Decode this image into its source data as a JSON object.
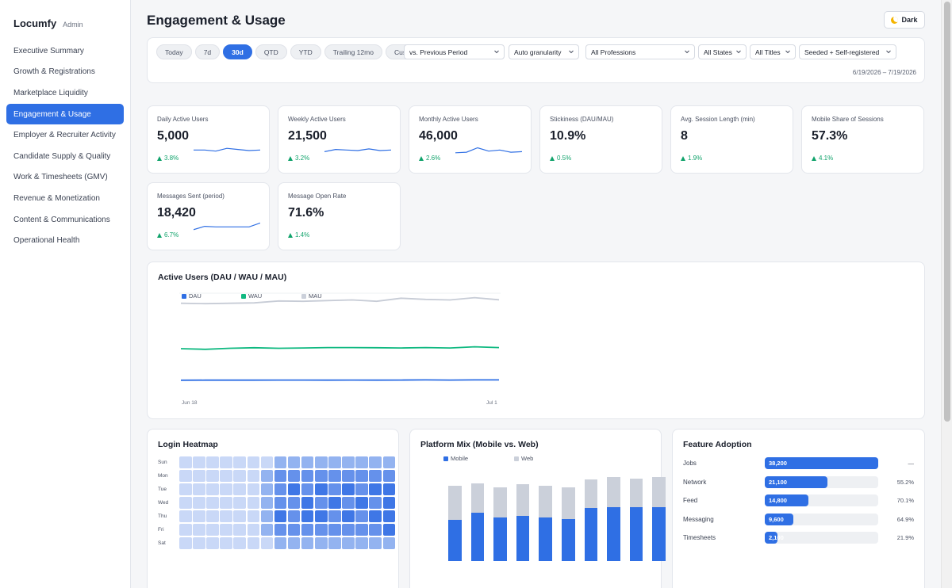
{
  "brand": {
    "name": "Locumfy",
    "sub": "Admin"
  },
  "nav": [
    {
      "label": "Executive Summary",
      "active": false
    },
    {
      "label": "Growth & Registrations",
      "active": false
    },
    {
      "label": "Marketplace Liquidity",
      "active": false
    },
    {
      "label": "Engagement & Usage",
      "active": true
    },
    {
      "label": "Employer & Recruiter Activity",
      "active": false
    },
    {
      "label": "Candidate Supply & Quality",
      "active": false
    },
    {
      "label": "Work & Timesheets (GMV)",
      "active": false
    },
    {
      "label": "Revenue & Monetization",
      "active": false
    },
    {
      "label": "Content & Communications",
      "active": false
    },
    {
      "label": "Operational Health",
      "active": false
    }
  ],
  "header": {
    "title": "Engagement & Usage",
    "theme_button": "Dark"
  },
  "filters": {
    "periods": [
      {
        "label": "Today",
        "active": false
      },
      {
        "label": "7d",
        "active": false
      },
      {
        "label": "30d",
        "active": true
      },
      {
        "label": "QTD",
        "active": false
      },
      {
        "label": "YTD",
        "active": false
      },
      {
        "label": "Trailing 12mo",
        "active": false
      },
      {
        "label": "Custom",
        "active": false
      }
    ],
    "comparison": "vs. Previous Period",
    "granularity": "Auto granularity",
    "profession": "All Professions",
    "state": "All States",
    "title": "All Titles",
    "source": "Seeded + Self-registered",
    "date_range": "6/19/2026 – 7/19/2026"
  },
  "kpis": [
    {
      "label": "Daily Active Users",
      "value": "5,000",
      "delta": "3.8%",
      "spark": [
        0.55,
        0.55,
        0.45,
        0.7,
        0.6,
        0.5,
        0.55
      ]
    },
    {
      "label": "Weekly Active Users",
      "value": "21,500",
      "delta": "3.2%",
      "spark": [
        0.4,
        0.6,
        0.55,
        0.5,
        0.65,
        0.5,
        0.55
      ]
    },
    {
      "label": "Monthly Active Users",
      "value": "46,000",
      "delta": "2.6%",
      "spark": [
        0.3,
        0.35,
        0.75,
        0.45,
        0.55,
        0.35,
        0.4
      ]
    },
    {
      "label": "Stickiness (DAU/MAU)",
      "value": "10.9%",
      "delta": "0.5%",
      "spark": null
    },
    {
      "label": "Avg. Session Length (min)",
      "value": "8",
      "delta": "1.9%",
      "spark": null
    },
    {
      "label": "Mobile Share of Sessions",
      "value": "57.3%",
      "delta": "4.1%",
      "spark": null
    },
    {
      "label": "Messages Sent (period)",
      "value": "18,420",
      "delta": "6.7%",
      "spark": [
        0.3,
        0.6,
        0.55,
        0.55,
        0.55,
        0.55,
        0.9
      ]
    },
    {
      "label": "Message Open Rate",
      "value": "71.6%",
      "delta": "1.4%",
      "spark": null
    }
  ],
  "active_users": {
    "title": "Active Users (DAU / WAU / MAU)",
    "legend": [
      "DAU",
      "WAU",
      "MAU"
    ],
    "x_start": "Jun 18",
    "x_end": "Jul 1"
  },
  "heatmap": {
    "title": "Login Heatmap",
    "days": [
      "Sun",
      "Mon",
      "Tue",
      "Wed",
      "Thu",
      "Fri",
      "Sat"
    ]
  },
  "platform": {
    "title": "Platform Mix (Mobile vs. Web)",
    "legend": [
      "Mobile",
      "Web"
    ]
  },
  "features": {
    "title": "Feature Adoption",
    "items": [
      {
        "label": "Jobs",
        "value": "38,200",
        "share": 1.0,
        "pct": "—"
      },
      {
        "label": "Network",
        "value": "21,100",
        "share": 0.552,
        "pct": "55.2%"
      },
      {
        "label": "Feed",
        "value": "14,800",
        "share": 0.387,
        "pct": "70.1%"
      },
      {
        "label": "Messaging",
        "value": "9,600",
        "share": 0.251,
        "pct": "64.9%"
      },
      {
        "label": "Timesheets",
        "value": "2,100",
        "share": 0.055,
        "pct": "21.9%"
      }
    ]
  },
  "chart_data": [
    {
      "type": "line",
      "title": "Active Users (DAU / WAU / MAU)",
      "x": [
        "Jun 18",
        "Jun 19",
        "Jun 20",
        "Jun 21",
        "Jun 22",
        "Jun 23",
        "Jun 24",
        "Jun 25",
        "Jun 26",
        "Jun 27",
        "Jun 28",
        "Jun 29",
        "Jun 30",
        "Jul 1"
      ],
      "series": [
        {
          "name": "MAU",
          "values": [
            44800,
            44600,
            44800,
            45000,
            46000,
            45800,
            46200,
            46500,
            45800,
            47400,
            46800,
            46500,
            47700,
            46600
          ]
        },
        {
          "name": "WAU",
          "values": [
            21300,
            21000,
            21500,
            21800,
            21500,
            21700,
            21900,
            21900,
            21800,
            21700,
            21900,
            21700,
            22300,
            21900
          ]
        },
        {
          "name": "DAU",
          "values": [
            5000,
            5050,
            5050,
            5050,
            5100,
            5100,
            5050,
            5100,
            5050,
            5100,
            5150,
            5100,
            5150,
            5150
          ]
        }
      ],
      "ylim": [
        0,
        50000
      ]
    },
    {
      "type": "bar",
      "title": "Platform Mix (Mobile vs. Web)",
      "series": [
        {
          "name": "Mobile",
          "values": [
            0.55,
            0.64,
            0.58,
            0.6,
            0.58,
            0.56,
            0.71,
            0.72,
            0.72,
            0.72
          ]
        },
        {
          "name": "Web",
          "values": [
            0.45,
            0.39,
            0.4,
            0.42,
            0.42,
            0.42,
            0.37,
            0.4,
            0.38,
            0.4
          ]
        }
      ]
    },
    {
      "type": "heatmap",
      "title": "Login Heatmap",
      "y": [
        "Sun",
        "Mon",
        "Tue",
        "Wed",
        "Thu",
        "Fri",
        "Sat"
      ],
      "hours_visible": 16,
      "intensity": [
        [
          1,
          1,
          1,
          1,
          1,
          1,
          1,
          2,
          2,
          2,
          2,
          2,
          2,
          2,
          2,
          2
        ],
        [
          1,
          1,
          1,
          1,
          1,
          1,
          2,
          3,
          3,
          3,
          3,
          3,
          3,
          3,
          3,
          3
        ],
        [
          1,
          1,
          1,
          1,
          1,
          1,
          2,
          3,
          4,
          3,
          4,
          3,
          4,
          3,
          4,
          4
        ],
        [
          1,
          1,
          1,
          1,
          1,
          1,
          2,
          3,
          3,
          4,
          3,
          4,
          3,
          4,
          3,
          4
        ],
        [
          1,
          1,
          1,
          1,
          1,
          1,
          2,
          4,
          3,
          4,
          4,
          3,
          4,
          3,
          4,
          4
        ],
        [
          1,
          1,
          1,
          1,
          1,
          1,
          2,
          3,
          3,
          3,
          3,
          3,
          3,
          3,
          3,
          4
        ],
        [
          1,
          1,
          1,
          1,
          1,
          1,
          1,
          2,
          2,
          2,
          2,
          2,
          2,
          2,
          2,
          2
        ]
      ]
    }
  ]
}
